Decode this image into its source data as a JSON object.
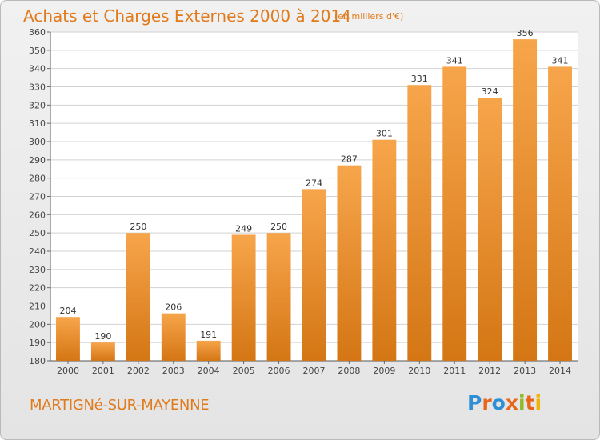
{
  "header": {
    "title": "Achats et Charges Externes 2000 à 2014",
    "subtitle": "(en milliers d'€)"
  },
  "footer": {
    "location": "MARTIGNé-SUR-MAYENNE",
    "logo_text": "Proxiti",
    "logo_colors": [
      "#2e8fd6",
      "#e8661a",
      "#2e8fd6",
      "#e8661a",
      "#8dbb25",
      "#e8661a",
      "#f2b300"
    ]
  },
  "colors": {
    "bar_top": "#f7a54b",
    "bar_bottom": "#d47614",
    "title": "#e07a1b",
    "grid": "#d2d2d2"
  },
  "chart_data": {
    "type": "bar",
    "title": "Achats et Charges Externes 2000 à 2014",
    "subtitle": "(en milliers d'€)",
    "categories": [
      "2000",
      "2001",
      "2002",
      "2003",
      "2004",
      "2005",
      "2006",
      "2007",
      "2008",
      "2009",
      "2010",
      "2011",
      "2012",
      "2013",
      "2014"
    ],
    "values": [
      204,
      190,
      250,
      206,
      191,
      249,
      250,
      274,
      287,
      301,
      331,
      341,
      324,
      356,
      341
    ],
    "ylim": [
      180,
      360
    ],
    "ytick_step": 10,
    "grid": true,
    "data_labels": true
  }
}
